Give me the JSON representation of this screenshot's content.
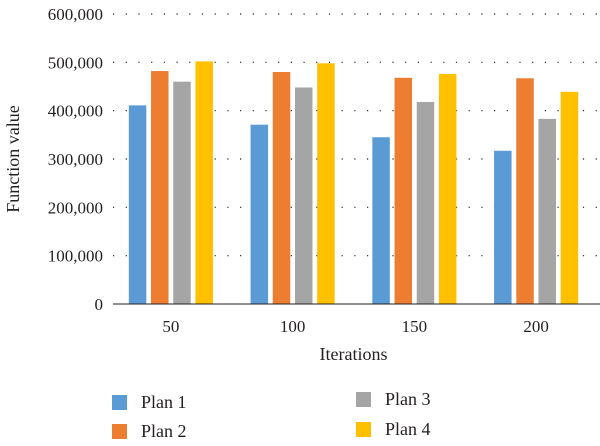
{
  "chart_data": {
    "type": "bar",
    "xlabel": "Iterations",
    "ylabel": "Function value",
    "categories": [
      "50",
      "100",
      "150",
      "200"
    ],
    "ylim": [
      0,
      600000
    ],
    "yticks": [
      "0",
      "100,000",
      "200,000",
      "300,000",
      "400,000",
      "500,000",
      "600,000"
    ],
    "grid": "dotted horizontal",
    "legend_placement": "bottom",
    "series": [
      {
        "name": "Plan 1",
        "color": "#5b9bd5",
        "values": [
          411000,
          371000,
          345000,
          317000
        ]
      },
      {
        "name": "Plan 2",
        "color": "#ed7d31",
        "values": [
          482000,
          480000,
          468000,
          467000
        ]
      },
      {
        "name": "Plan 3",
        "color": "#a5a5a5",
        "values": [
          460000,
          448000,
          418000,
          383000
        ]
      },
      {
        "name": "Plan 4",
        "color": "#ffc000",
        "values": [
          502000,
          498000,
          476000,
          439000
        ]
      }
    ]
  }
}
